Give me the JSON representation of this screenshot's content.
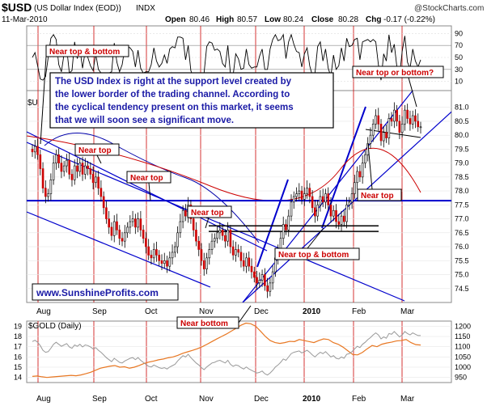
{
  "header": {
    "symbol": "$USD",
    "name": "(US Dollar Index (EOD))",
    "exchange": "INDX",
    "date": "11-Mar-2010",
    "open_label": "Open",
    "open": "80.46",
    "high_label": "High",
    "high": "80.57",
    "low_label": "Low",
    "low": "80.24",
    "close_label": "Close",
    "close": "80.28",
    "chg_label": "Chg",
    "chg": "-0.17 (-0.22%)",
    "watermark": "@StockCharts.com"
  },
  "panel_labels": {
    "main": "$U",
    "gold": "$GOLD (Daily)"
  },
  "callout": {
    "lines": [
      "The USD Index is right at the support level created by",
      "the lower border of the trading channel. According to",
      "the cyclical tendency present on this market, it seems",
      "that we will soon see a significant move."
    ]
  },
  "website": "www.SunshineProfits.com",
  "annotations": {
    "near_top_bottom_1": "Near top & bottom",
    "near_top_1": "Near top",
    "near_top_2": "Near top",
    "near_top_3": "Near top",
    "near_top_bottom_2": "Near top & bottom",
    "near_top_4": "Near top",
    "near_top_or_bottom": "Near top or bottom?",
    "near_bottom": "Near bottom"
  },
  "chart_data": {
    "type": "candlestick",
    "x_tick_labels": [
      "Aug",
      "Sep",
      "Oct",
      "Nov",
      "Dec",
      "2010",
      "Feb",
      "Mar"
    ],
    "rsi_ticks": [
      90,
      70,
      50,
      30,
      10
    ],
    "price_ticks": [
      81.0,
      80.5,
      80.0,
      79.5,
      79.0,
      78.5,
      78.0,
      77.5,
      77.0,
      76.5,
      76.0,
      75.5,
      75.0,
      74.5
    ],
    "price_range": [
      74.0,
      81.6
    ],
    "gold_left_ticks": [
      19,
      18,
      17,
      16,
      15,
      14
    ],
    "gold_right_ticks": [
      1200,
      1150,
      1100,
      1050,
      1000,
      950
    ],
    "support_level": 77.65,
    "resistance_levels": [
      76.75,
      76.55
    ],
    "close_series": [
      79.4,
      79.6,
      79.3,
      78.8,
      78.1,
      77.8,
      77.9,
      78.4,
      79.0,
      79.3,
      79.0,
      78.7,
      78.9,
      79.1,
      78.6,
      78.4,
      78.9,
      78.7,
      79.0,
      78.6,
      78.9,
      78.8,
      78.6,
      78.3,
      78.5,
      78.1,
      77.8,
      77.4,
      77.0,
      76.7,
      76.4,
      76.9,
      76.6,
      76.3,
      76.2,
      76.5,
      76.7,
      76.9,
      77.0,
      76.7,
      77.0,
      76.6,
      76.3,
      76.0,
      75.7,
      75.6,
      75.9,
      75.7,
      75.5,
      75.4,
      75.5,
      75.3,
      75.6,
      75.8,
      76.0,
      76.5,
      76.9,
      77.3,
      77.1,
      77.5,
      77.0,
      76.6,
      76.2,
      75.9,
      75.5,
      75.2,
      75.6,
      75.9,
      76.2,
      76.3,
      76.5,
      76.6,
      76.4,
      76.2,
      76.6,
      76.0,
      75.7,
      75.9,
      75.8,
      75.5,
      75.3,
      75.6,
      75.3,
      75.1,
      74.9,
      74.7,
      74.8,
      75.0,
      74.6,
      74.4,
      74.7,
      75.1,
      75.6,
      75.9,
      76.3,
      76.8,
      76.6,
      77.1,
      77.6,
      77.8,
      77.9,
      78.0,
      77.7,
      77.9,
      78.1,
      77.8,
      77.4,
      77.1,
      77.5,
      77.8,
      77.6,
      77.9,
      77.5,
      77.1,
      77.3,
      76.9,
      76.8,
      77.1,
      76.9,
      77.5,
      77.6,
      77.9,
      78.3,
      78.7,
      78.5,
      79.0,
      79.3,
      79.7,
      80.0,
      80.4,
      80.7,
      80.4,
      79.8,
      80.1,
      79.9,
      80.6,
      80.5,
      80.9,
      80.5,
      80.1,
      80.4,
      80.9,
      80.6,
      80.4,
      80.7,
      80.5,
      80.3,
      80.3
    ],
    "gold_close_series": [
      955,
      957,
      953,
      950,
      952,
      954,
      956,
      958,
      960,
      958,
      962,
      968,
      975,
      985,
      995,
      1000,
      1005,
      1008,
      1000,
      1002,
      995,
      1000,
      1008,
      1018,
      1025,
      1030,
      1036,
      1040,
      1046,
      1050,
      1058,
      1068,
      1075,
      1082,
      1090,
      1100,
      1112,
      1125,
      1138,
      1150,
      1162,
      1176,
      1190,
      1205,
      1215,
      1212,
      1200,
      1176,
      1150,
      1130,
      1120,
      1116,
      1120,
      1126,
      1125,
      1135,
      1130,
      1125,
      1120,
      1130,
      1138,
      1135,
      1120,
      1112,
      1098,
      1080,
      1062,
      1060,
      1072,
      1090,
      1106,
      1100,
      1112,
      1118,
      1122,
      1128,
      1130,
      1135,
      1120,
      1110,
      1108
    ]
  }
}
